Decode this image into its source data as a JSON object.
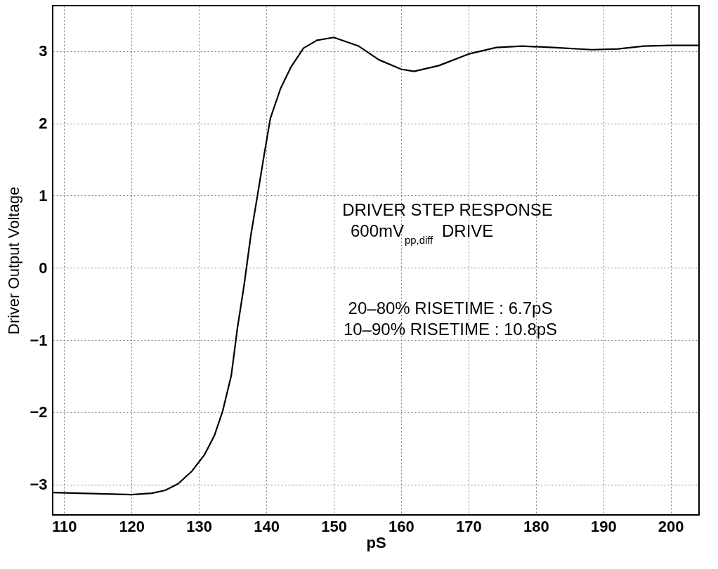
{
  "chart_data": {
    "type": "line",
    "xlabel": "pS",
    "ylabel": "Driver Output Voltage",
    "xlim": [
      108.3,
      204.2
    ],
    "ylim": [
      -3.42,
      3.63
    ],
    "xticks": [
      110,
      120,
      130,
      140,
      150,
      160,
      170,
      180,
      190,
      200
    ],
    "yticks": [
      -3,
      -2,
      -1,
      0,
      1,
      2,
      3
    ],
    "grid": true,
    "line_style": "solid",
    "marker": "none",
    "series": [
      {
        "color": "#000000",
        "x": [
          108.3,
          120,
          123,
          125,
          126.9,
          128.9,
          130.8,
          132.3,
          133.5,
          134.8,
          135.7,
          136.7,
          137.7,
          138.7,
          139.7,
          140.6,
          142.1,
          143.6,
          145.5,
          147.5,
          150,
          153.7,
          156.7,
          160,
          161.9,
          165.6,
          170,
          174.1,
          177.9,
          182.6,
          188.3,
          192.2,
          196,
          200,
          204.2
        ],
        "values": [
          -3.11,
          -3.14,
          -3.12,
          -3.08,
          -2.99,
          -2.82,
          -2.59,
          -2.32,
          -1.99,
          -1.49,
          -0.84,
          -0.24,
          0.45,
          1.01,
          1.58,
          2.07,
          2.48,
          2.77,
          3.04,
          3.15,
          3.19,
          3.07,
          2.88,
          2.75,
          2.72,
          2.8,
          2.96,
          3.05,
          3.07,
          3.05,
          3.02,
          3.03,
          3.07,
          3.08,
          3.08
        ]
      }
    ],
    "annotations": [
      "DRIVER  STEP RESPONSE",
      "600mV$_{pp,diff}$ DRIVE",
      "20–80%  RISETIME :  6.7pS",
      "10–90%  RISETIME :  10.8pS"
    ]
  }
}
